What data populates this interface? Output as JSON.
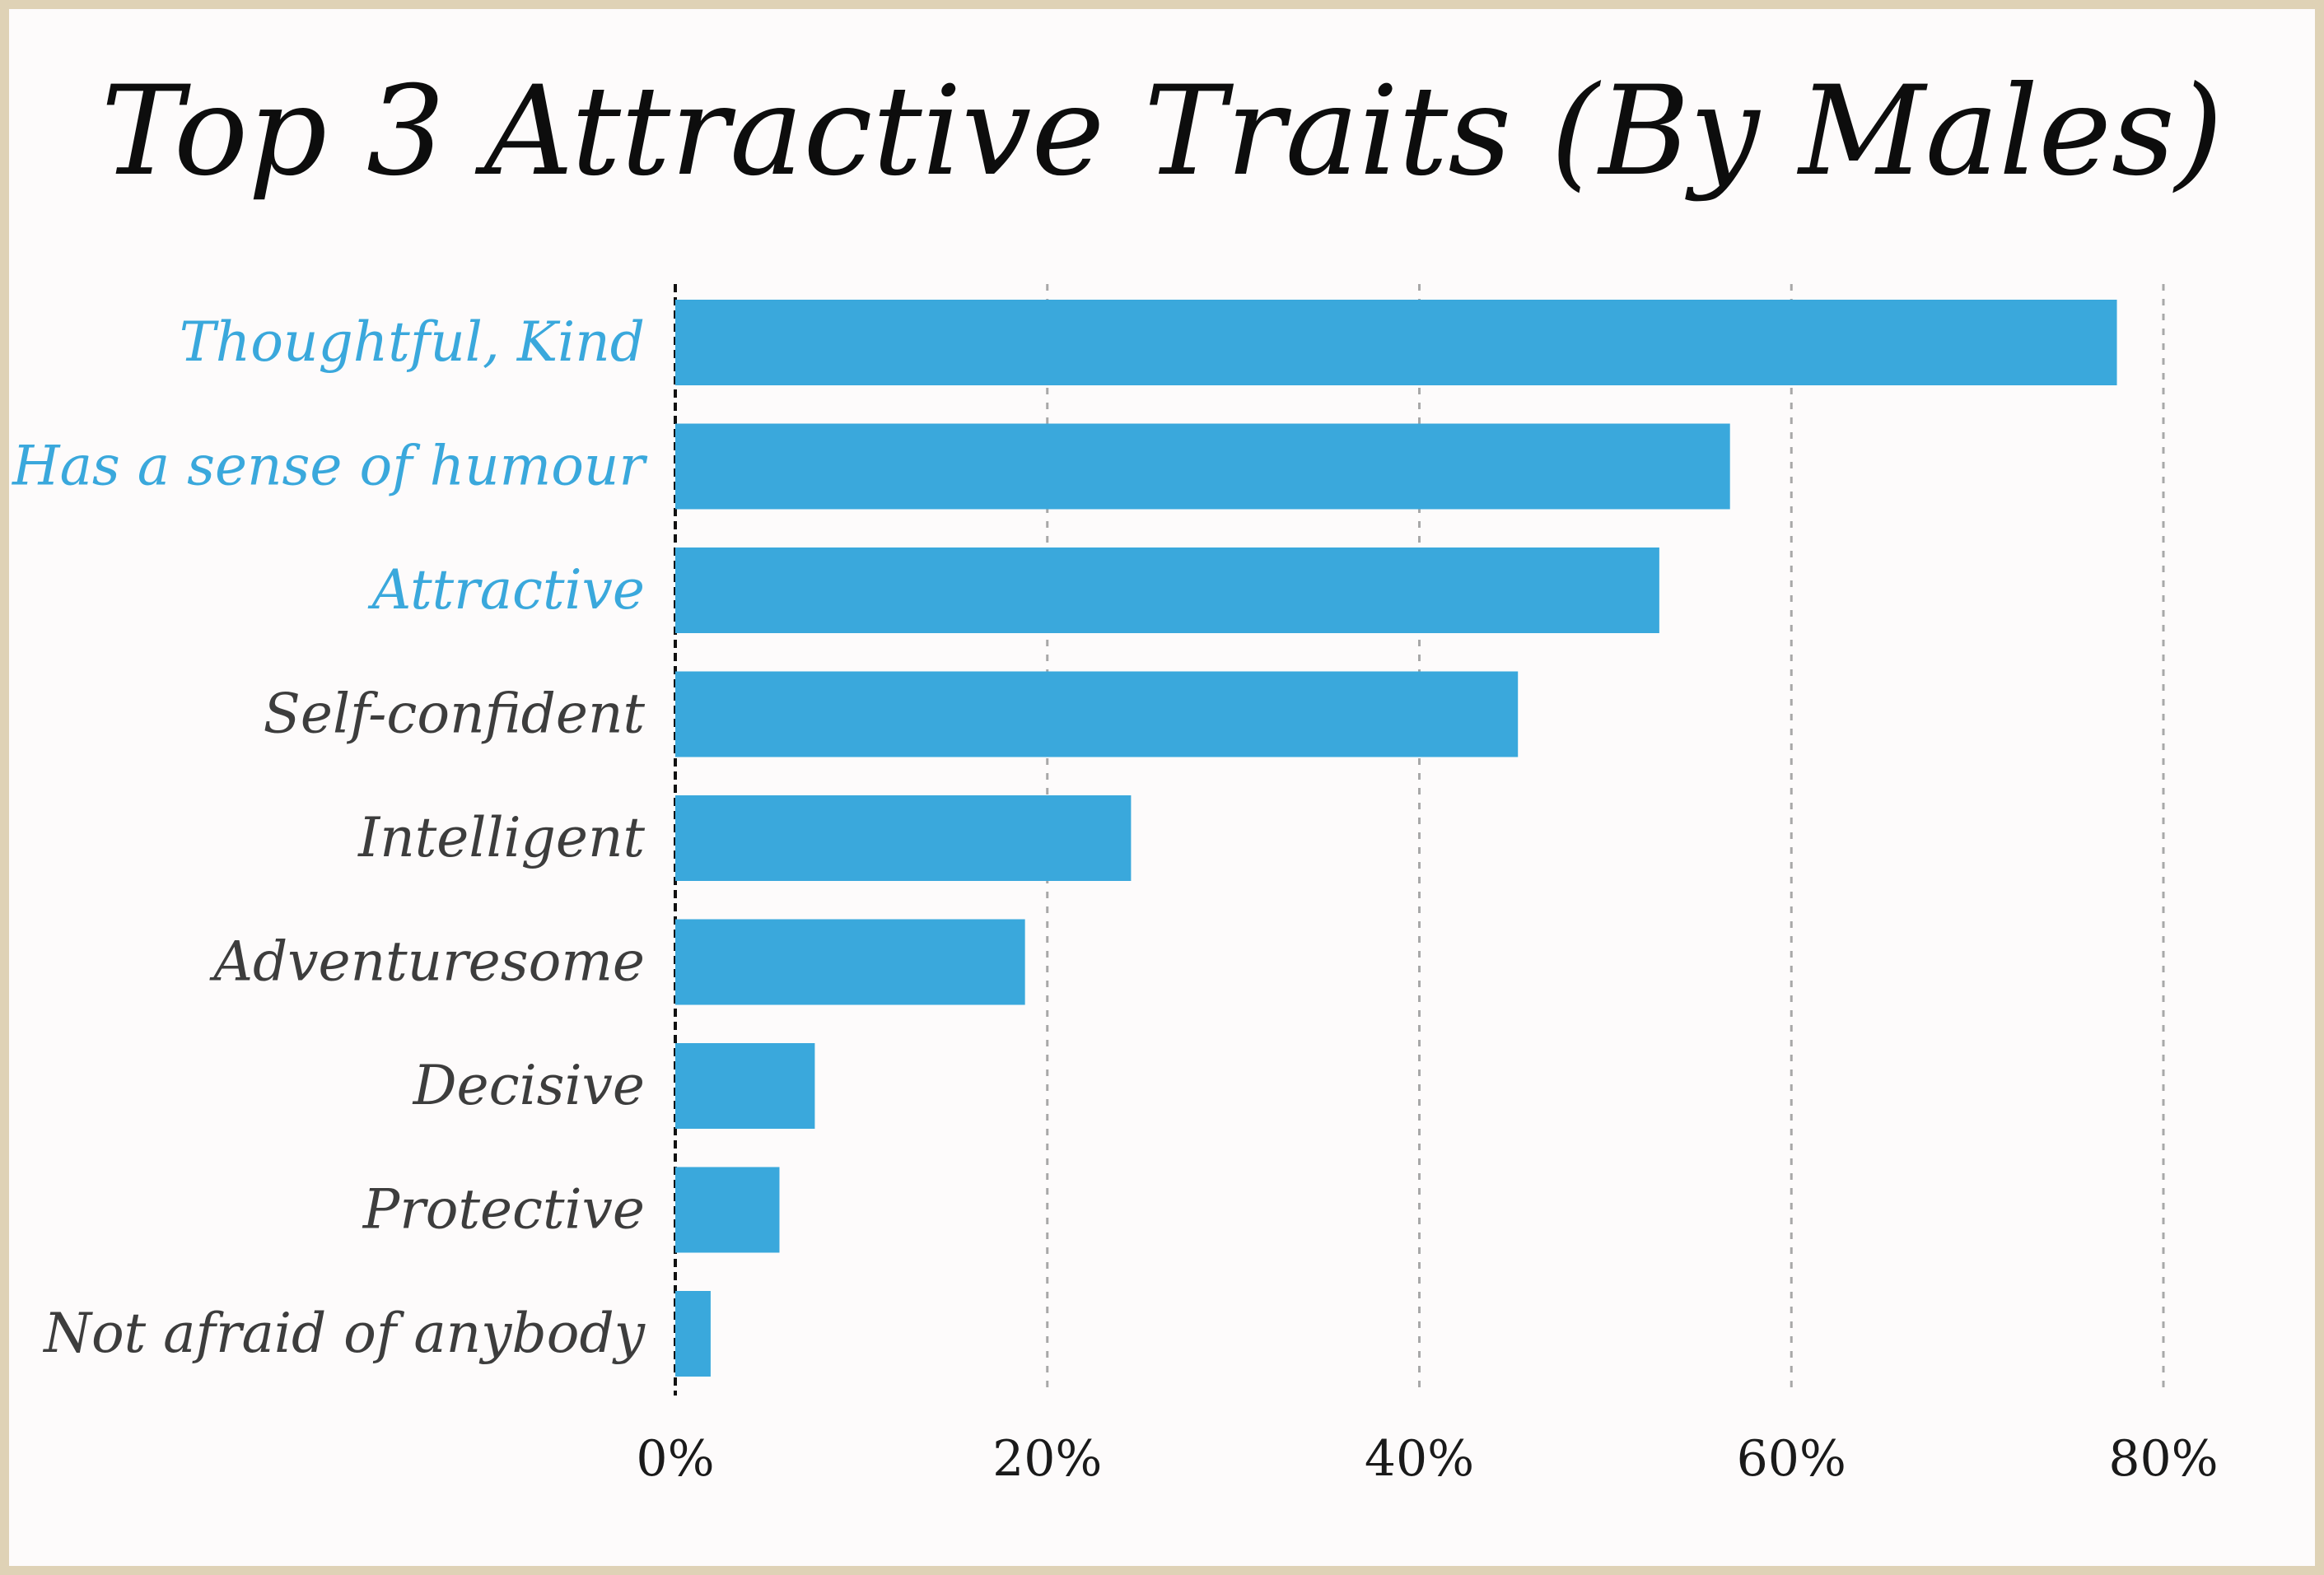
{
  "chart_data": {
    "type": "bar",
    "orientation": "horizontal",
    "title": "Top 3 Attractive Traits (By Males)",
    "categories": [
      "Thoughtful, Kind",
      "Has a sense of humour",
      "Attractive",
      "Self-confident",
      "Intelligent",
      "Adventuresome",
      "Decisive",
      "Protective",
      "Not afraid of anybody"
    ],
    "values": [
      77.5,
      56.7,
      52.9,
      45.3,
      24.5,
      18.8,
      7.5,
      5.6,
      1.9
    ],
    "highlighted_top": 3,
    "xlim": [
      0,
      80
    ],
    "xticks": [
      0,
      20,
      40,
      60,
      80
    ],
    "xtick_labels": [
      "0%",
      "20%",
      "40%",
      "60%",
      "80%"
    ],
    "grid": "vertical dashed",
    "colors": {
      "bar": "#3aa8dc",
      "highlight_label": "#3aa8dc",
      "label": "#3d3d3d",
      "grid": "#a8a8a8",
      "axis": "#111111",
      "frame": "#dfd2b6"
    }
  }
}
